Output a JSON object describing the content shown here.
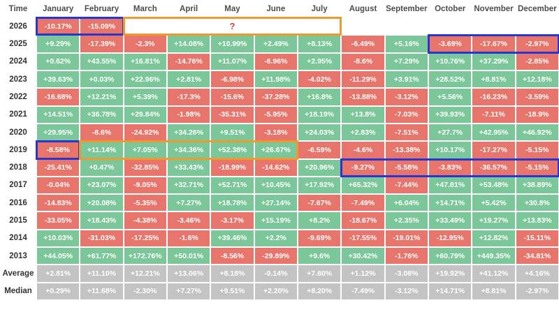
{
  "chart_data": {
    "type": "heatmap",
    "description": "Monthly percentage returns by year with Average and Median summary rows",
    "time_label": "Time",
    "months": [
      "January",
      "February",
      "March",
      "April",
      "May",
      "June",
      "July",
      "August",
      "September",
      "October",
      "November",
      "December"
    ],
    "rows": [
      {
        "label": "2026",
        "summary": false,
        "values": [
          "-10.17%",
          "-15.09%",
          "",
          "",
          "",
          "",
          "",
          "",
          "",
          "",
          "",
          ""
        ]
      },
      {
        "label": "2025",
        "summary": false,
        "values": [
          "+9.29%",
          "-17.39%",
          "-2.3%",
          "+14.08%",
          "+10.99%",
          "+2.49%",
          "+8.13%",
          "-6.49%",
          "+5.16%",
          "-3.69%",
          "-17.67%",
          "-2.97%"
        ]
      },
      {
        "label": "2024",
        "summary": false,
        "values": [
          "+0.62%",
          "+43.55%",
          "+16.81%",
          "-14.76%",
          "+11.07%",
          "-6.96%",
          "+2.95%",
          "-8.6%",
          "+7.29%",
          "+10.76%",
          "+37.29%",
          "-2.85%"
        ]
      },
      {
        "label": "2023",
        "summary": false,
        "values": [
          "+39.63%",
          "+0.03%",
          "+22.96%",
          "+2.81%",
          "-6.98%",
          "+11.98%",
          "-4.02%",
          "-11.29%",
          "+3.91%",
          "+28.52%",
          "+8.81%",
          "+12.18%"
        ]
      },
      {
        "label": "2022",
        "summary": false,
        "values": [
          "-16.68%",
          "+12.21%",
          "+5.39%",
          "-17.3%",
          "-15.6%",
          "-37.28%",
          "+16.8%",
          "-13.88%",
          "-3.12%",
          "+5.56%",
          "-16.23%",
          "-3.59%"
        ]
      },
      {
        "label": "2021",
        "summary": false,
        "values": [
          "+14.51%",
          "+36.78%",
          "+29.84%",
          "-1.98%",
          "-35.31%",
          "-5.95%",
          "+18.19%",
          "+13.8%",
          "-7.03%",
          "+39.93%",
          "-7.11%",
          "-18.9%"
        ]
      },
      {
        "label": "2020",
        "summary": false,
        "values": [
          "+29.95%",
          "-8.6%",
          "-24.92%",
          "+34.26%",
          "+9.51%",
          "-3.18%",
          "+24.03%",
          "+2.83%",
          "-7.51%",
          "+27.7%",
          "+42.95%",
          "+46.92%"
        ]
      },
      {
        "label": "2019",
        "summary": false,
        "values": [
          "-8.58%",
          "+11.14%",
          "+7.05%",
          "+34.36%",
          "+52.38%",
          "+26.67%",
          "-6.59%",
          "-4.6%",
          "-13.38%",
          "+10.17%",
          "-17.27%",
          "-5.15%"
        ]
      },
      {
        "label": "2018",
        "summary": false,
        "values": [
          "-25.41%",
          "+0.47%",
          "-32.85%",
          "+33.43%",
          "-18.99%",
          "-14.62%",
          "+20.96%",
          "-9.27%",
          "-5.58%",
          "-3.83%",
          "-36.57%",
          "-5.15%"
        ]
      },
      {
        "label": "2017",
        "summary": false,
        "values": [
          "-0.04%",
          "+23.07%",
          "-9.05%",
          "+32.71%",
          "+52.71%",
          "+10.45%",
          "+17.92%",
          "+65.32%",
          "-7.44%",
          "+47.81%",
          "+53.48%",
          "+38.89%"
        ]
      },
      {
        "label": "2016",
        "summary": false,
        "values": [
          "-14.83%",
          "+20.08%",
          "-5.35%",
          "+7.27%",
          "+18.78%",
          "+27.14%",
          "-7.67%",
          "-7.49%",
          "+6.04%",
          "+14.71%",
          "+5.42%",
          "+30.8%"
        ]
      },
      {
        "label": "2015",
        "summary": false,
        "values": [
          "-33.05%",
          "+18.43%",
          "-4.38%",
          "-3.46%",
          "-3.17%",
          "+15.19%",
          "+8.2%",
          "-18.67%",
          "+2.35%",
          "+33.49%",
          "+19.27%",
          "+13.83%"
        ]
      },
      {
        "label": "2014",
        "summary": false,
        "values": [
          "+10.03%",
          "-31.03%",
          "-17.25%",
          "-1.6%",
          "+39.46%",
          "+2.2%",
          "-9.69%",
          "-17.55%",
          "-19.01%",
          "-12.95%",
          "+12.82%",
          "-15.11%"
        ]
      },
      {
        "label": "2013",
        "summary": false,
        "values": [
          "+44.05%",
          "+61.77%",
          "+172.76%",
          "+50.01%",
          "-8.56%",
          "-29.89%",
          "+9.6%",
          "+30.42%",
          "-1.76%",
          "+60.79%",
          "+449.35%",
          "-34.81%"
        ]
      },
      {
        "label": "Average",
        "summary": true,
        "values": [
          "+2.81%",
          "+11.10%",
          "+12.21%",
          "+13.06%",
          "+8.18%",
          "-0.14%",
          "+7.60%",
          "+1.12%",
          "-3.08%",
          "+19.92%",
          "+41.12%",
          "+4.16%"
        ]
      },
      {
        "label": "Median",
        "summary": true,
        "values": [
          "+0.29%",
          "+11.68%",
          "-2.30%",
          "+7.27%",
          "+9.51%",
          "+2.20%",
          "+8.20%",
          "-7.49%",
          "-3.12%",
          "+14.71%",
          "+8.81%",
          "-2.97%"
        ]
      }
    ],
    "annotations": [
      {
        "row": "2026",
        "from_month": "January",
        "to_month": "February",
        "color": "blue",
        "label": ""
      },
      {
        "row": "2026",
        "from_month": "March",
        "to_month": "July",
        "color": "orange",
        "label": "?"
      },
      {
        "row": "2025",
        "from_month": "October",
        "to_month": "December",
        "color": "blue",
        "label": ""
      },
      {
        "row": "2019",
        "from_month": "January",
        "to_month": "January",
        "color": "blue",
        "label": ""
      },
      {
        "row": "2019",
        "from_month": "February",
        "to_month": "June",
        "color": "orange",
        "label": ""
      },
      {
        "row": "2018",
        "from_month": "August",
        "to_month": "December",
        "color": "blue",
        "label": ""
      }
    ],
    "colors": {
      "positive": "#7cc79a",
      "negative": "#e8756c",
      "summary": "#c3c3c3",
      "blue_box": "#2636d1",
      "orange_box": "#ee9b2d",
      "placeholder_text": "#d54436"
    },
    "legend_position": "none",
    "grid": "white gaps between tiles"
  }
}
